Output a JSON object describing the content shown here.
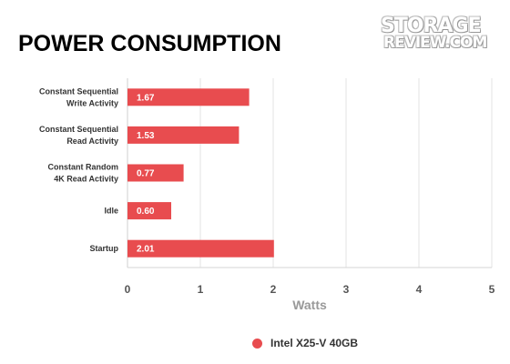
{
  "title": "POWER CONSUMPTION",
  "logo": {
    "line1": "STORAGE",
    "line2": "REVIEW.COM"
  },
  "chart_data": {
    "type": "bar",
    "orientation": "horizontal",
    "categories": [
      [
        "Constant Sequential",
        "Write Activity"
      ],
      [
        "Constant Sequential",
        "Read Activity"
      ],
      [
        "Constant Random",
        "4K Read Activity"
      ],
      [
        "Idle"
      ],
      [
        "Startup"
      ]
    ],
    "series": [
      {
        "name": "Intel X25-V 40GB",
        "values": [
          1.67,
          1.53,
          0.77,
          0.6,
          2.01
        ],
        "color": "#e84c4f"
      }
    ],
    "data_labels": [
      "1.67",
      "1.53",
      "0.77",
      "0.60",
      "2.01"
    ],
    "xlabel": "Watts",
    "xlim": [
      0,
      5
    ],
    "xticks": [
      0,
      1,
      2,
      3,
      4,
      5
    ],
    "grid": true,
    "legend_position": "bottom"
  }
}
